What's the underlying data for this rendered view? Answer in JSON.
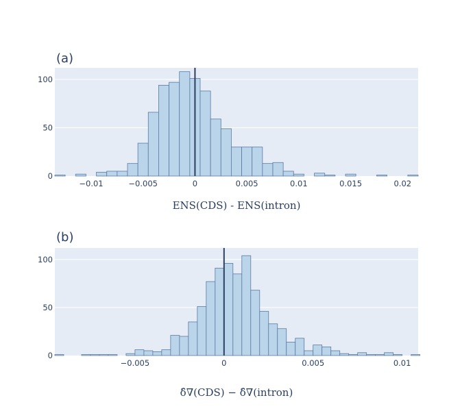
{
  "chart_data": [
    {
      "type": "histogram",
      "title": "(a)",
      "xlabel": "ENS(CDS) - ENS(intron)",
      "ylabel": "",
      "xlim": [
        -0.0135,
        0.0215
      ],
      "ylim": [
        0,
        112
      ],
      "xticks": [
        -0.01,
        -0.005,
        0,
        0.005,
        0.01,
        0.015,
        0.02
      ],
      "xtick_labels": [
        "−0.01",
        "−0.005",
        "0",
        "0.005",
        "0.01",
        "0.015",
        "0.02"
      ],
      "yticks": [
        0,
        50,
        100
      ],
      "ytick_labels": [
        "0",
        "50",
        "100"
      ],
      "vline_x": 0,
      "grid": true,
      "bin_width": 0.001,
      "bin_starts": [
        -0.0135,
        -0.0115,
        -0.0095,
        -0.0085,
        -0.0075,
        -0.0065,
        -0.0055,
        -0.0045,
        -0.0035,
        -0.0025,
        -0.0015,
        -0.0005,
        0.0005,
        0.0015,
        0.0025,
        0.0035,
        0.0045,
        0.0055,
        0.0065,
        0.0075,
        0.0085,
        0.0095,
        0.0115,
        0.0125,
        0.0145,
        0.0175,
        0.0205
      ],
      "counts": [
        1,
        2,
        4,
        5,
        5,
        13,
        34,
        66,
        94,
        97,
        108,
        101,
        88,
        59,
        49,
        30,
        30,
        30,
        13,
        14,
        5,
        2,
        3,
        1,
        2,
        1,
        1
      ]
    },
    {
      "type": "histogram",
      "title": "(b)",
      "xlabel": "δ̂∇(CDS) − δ̂∇(intron)",
      "ylabel": "",
      "xlim": [
        -0.0095,
        0.0109
      ],
      "ylim": [
        0,
        112
      ],
      "xticks": [
        -0.005,
        0,
        0.005,
        0.01
      ],
      "xtick_labels": [
        "−0.005",
        "0",
        "0.005",
        "0.01"
      ],
      "yticks": [
        0,
        50,
        100
      ],
      "ytick_labels": [
        "0",
        "50",
        "100"
      ],
      "vline_x": 0,
      "grid": true,
      "bin_width": 0.0005,
      "bin_starts": [
        -0.0095,
        -0.008,
        -0.0075,
        -0.007,
        -0.0065,
        -0.0055,
        -0.005,
        -0.0045,
        -0.004,
        -0.0035,
        -0.003,
        -0.0025,
        -0.002,
        -0.0015,
        -0.001,
        -0.0005,
        0.0,
        0.0005,
        0.001,
        0.0015,
        0.002,
        0.0025,
        0.003,
        0.0035,
        0.004,
        0.0045,
        0.005,
        0.0055,
        0.006,
        0.0065,
        0.007,
        0.0075,
        0.008,
        0.0085,
        0.009,
        0.0095,
        0.0105
      ],
      "counts": [
        1,
        1,
        1,
        1,
        1,
        2,
        6,
        5,
        4,
        6,
        21,
        20,
        35,
        51,
        77,
        91,
        96,
        85,
        104,
        68,
        46,
        33,
        28,
        14,
        18,
        5,
        11,
        9,
        5,
        2,
        1,
        3,
        1,
        1,
        3,
        1,
        1
      ]
    }
  ]
}
